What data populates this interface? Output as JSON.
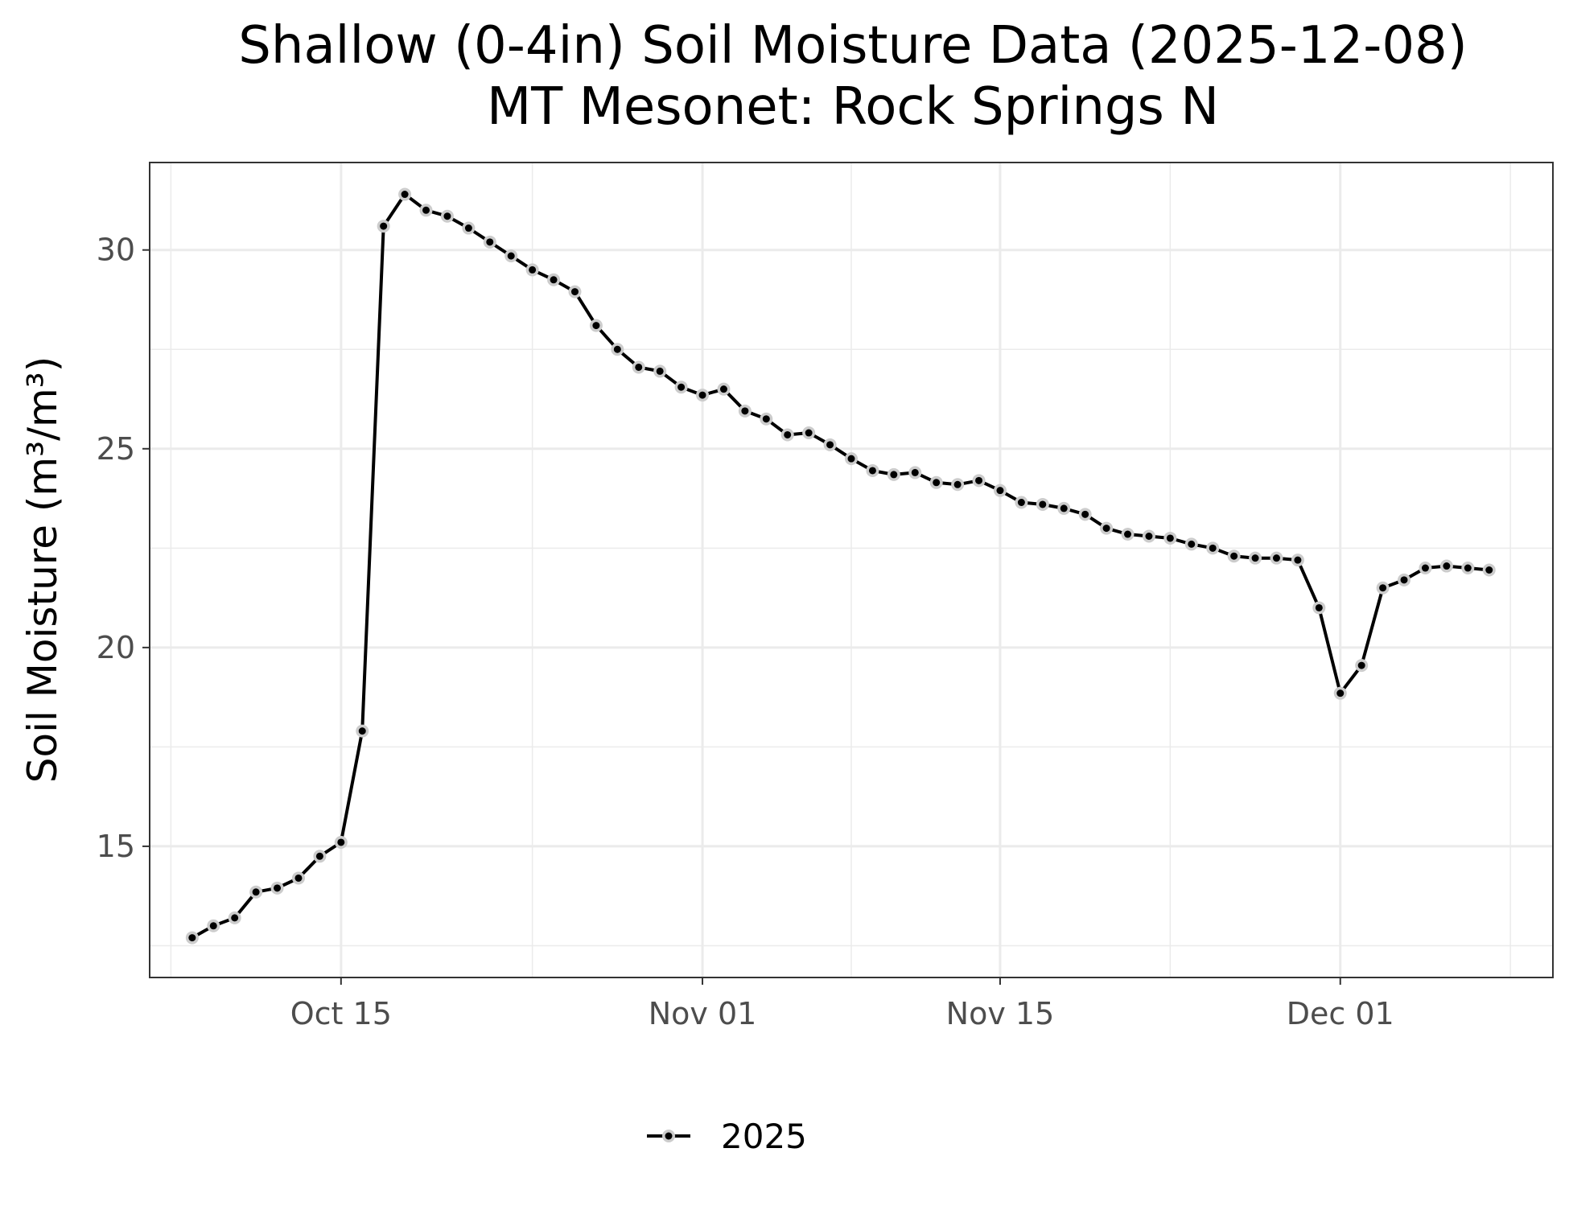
{
  "chart_data": {
    "type": "line",
    "title": "Shallow (0-4in) Soil Moisture Data (2025-12-08)",
    "subtitle": "MT Mesonet: Rock Springs N",
    "xlabel": "",
    "ylabel": "Soil Moisture (m³/m³)",
    "xlim": [
      "2025-10-06",
      "2025-12-11"
    ],
    "ylim": [
      11.7,
      32.2
    ],
    "x_ticks": [
      {
        "date": "2025-10-15",
        "label": "Oct 15"
      },
      {
        "date": "2025-11-01",
        "label": "Nov 01"
      },
      {
        "date": "2025-11-15",
        "label": "Nov 15"
      },
      {
        "date": "2025-12-01",
        "label": "Dec 01"
      }
    ],
    "x_minor_ticks": [
      "2025-10-07",
      "2025-10-24",
      "2025-11-08",
      "2025-11-23",
      "2025-12-09"
    ],
    "y_ticks": [
      15,
      20,
      25,
      30
    ],
    "y_minor_ticks": [
      12.5,
      17.5,
      22.5,
      27.5
    ],
    "grid": true,
    "legend": {
      "position": "bottom"
    },
    "series": [
      {
        "name": "2025",
        "color": "#000000",
        "halo_color": "#cccccc",
        "x": [
          "2025-10-08",
          "2025-10-09",
          "2025-10-10",
          "2025-10-11",
          "2025-10-12",
          "2025-10-13",
          "2025-10-14",
          "2025-10-15",
          "2025-10-16",
          "2025-10-17",
          "2025-10-18",
          "2025-10-19",
          "2025-10-20",
          "2025-10-21",
          "2025-10-22",
          "2025-10-23",
          "2025-10-24",
          "2025-10-25",
          "2025-10-26",
          "2025-10-27",
          "2025-10-28",
          "2025-10-29",
          "2025-10-30",
          "2025-10-31",
          "2025-11-01",
          "2025-11-02",
          "2025-11-03",
          "2025-11-04",
          "2025-11-05",
          "2025-11-06",
          "2025-11-07",
          "2025-11-08",
          "2025-11-09",
          "2025-11-10",
          "2025-11-11",
          "2025-11-12",
          "2025-11-13",
          "2025-11-14",
          "2025-11-15",
          "2025-11-16",
          "2025-11-17",
          "2025-11-18",
          "2025-11-19",
          "2025-11-20",
          "2025-11-21",
          "2025-11-22",
          "2025-11-23",
          "2025-11-24",
          "2025-11-25",
          "2025-11-26",
          "2025-11-27",
          "2025-11-28",
          "2025-11-29",
          "2025-11-30",
          "2025-12-01",
          "2025-12-02",
          "2025-12-03",
          "2025-12-04",
          "2025-12-05",
          "2025-12-06",
          "2025-12-07",
          "2025-12-08"
        ],
        "values": [
          12.7,
          13.0,
          13.2,
          13.85,
          13.95,
          14.2,
          14.75,
          15.1,
          17.9,
          30.6,
          31.4,
          31.0,
          30.85,
          30.55,
          30.2,
          29.85,
          29.5,
          29.25,
          28.95,
          28.1,
          27.5,
          27.05,
          26.95,
          26.55,
          26.35,
          26.5,
          25.95,
          25.75,
          25.35,
          25.4,
          25.1,
          24.75,
          24.45,
          24.35,
          24.4,
          24.15,
          24.1,
          24.2,
          23.95,
          23.65,
          23.6,
          23.5,
          23.35,
          23.0,
          22.85,
          22.8,
          22.75,
          22.6,
          22.5,
          22.3,
          22.25,
          22.25,
          22.2,
          21.0,
          18.85,
          19.55,
          21.5,
          21.7,
          22.0,
          22.05,
          22.0,
          21.95
        ]
      }
    ]
  }
}
